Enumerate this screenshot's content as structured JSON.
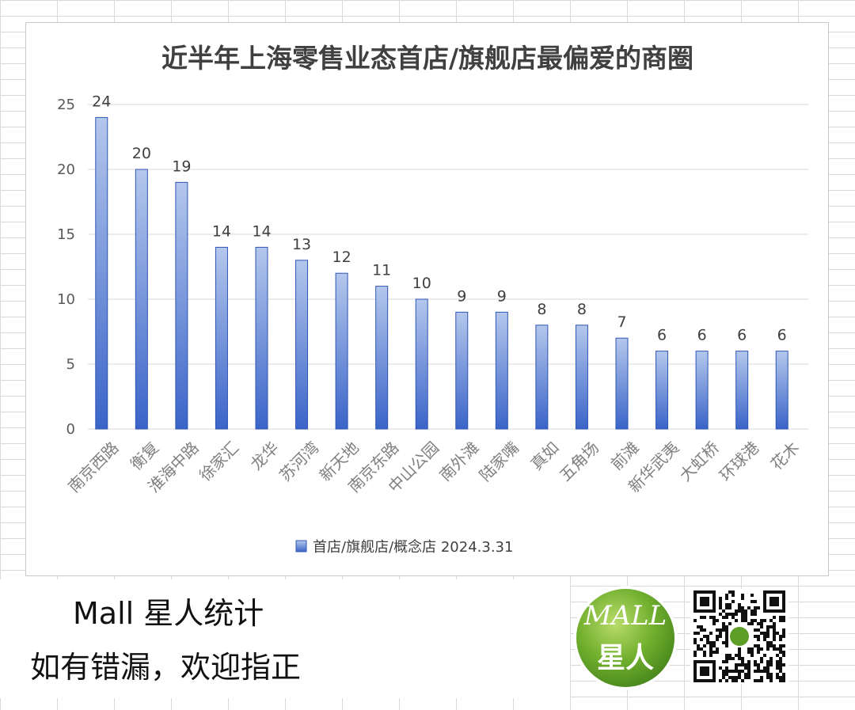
{
  "chart_data": {
    "type": "bar",
    "title": "近半年上海零售业态首店/旗舰店最偏爱的商圈",
    "categories": [
      "南京西路",
      "衡复",
      "淮海中路",
      "徐家汇",
      "龙华",
      "苏河湾",
      "新天地",
      "南京东路",
      "中山公园",
      "南外滩",
      "陆家嘴",
      "真如",
      "五角场",
      "前滩",
      "新华武夷",
      "大虹桥",
      "环球港",
      "花木"
    ],
    "series": [
      {
        "name": "首店/旗舰店/概念店 2024.3.31",
        "values": [
          24,
          20,
          19,
          14,
          14,
          13,
          12,
          11,
          10,
          9,
          9,
          8,
          8,
          7,
          6,
          6,
          6,
          6
        ]
      }
    ],
    "ylim": [
      0,
      25
    ],
    "yticks": [
      0,
      5,
      10,
      15,
      20,
      25
    ],
    "xlabel": "",
    "ylabel": "",
    "grid": true,
    "legend": "bottom",
    "colors": {
      "bar_top": "#b4c7ec",
      "bar_bottom": "#3a64c8",
      "bar_edge": "#2f55b5"
    }
  },
  "footer": {
    "line1": "Mall 星人统计",
    "line2": "如有错漏，欢迎指正"
  },
  "logo": {
    "top": "MALL",
    "bottom": "星人"
  },
  "qr_icon": "qr-code-icon"
}
